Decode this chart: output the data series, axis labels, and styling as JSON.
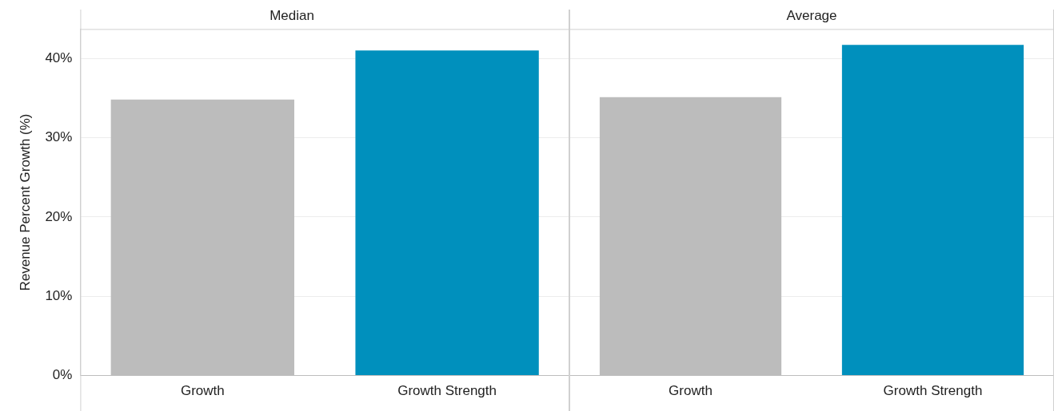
{
  "chart_data": [
    {
      "type": "bar",
      "title": "Median",
      "ylabel": "Revenue Percent Growth (%)",
      "categories": [
        "Growth",
        "Growth Strength"
      ],
      "values": [
        34.8,
        41.0
      ],
      "colors": [
        "#bcbcbc",
        "#0090bd"
      ],
      "ylim": [
        0,
        43.7
      ],
      "yticks": [
        {
          "value": 0,
          "label": "0%"
        },
        {
          "value": 10,
          "label": "10%"
        },
        {
          "value": 20,
          "label": "20%"
        },
        {
          "value": 30,
          "label": "30%"
        },
        {
          "value": 40,
          "label": "40%"
        }
      ],
      "grid": "y",
      "legend": false
    },
    {
      "type": "bar",
      "title": "Average",
      "categories": [
        "Growth",
        "Growth Strength"
      ],
      "values": [
        35.1,
        41.7
      ],
      "colors": [
        "#bcbcbc",
        "#0090bd"
      ],
      "ylim": [
        0,
        43.7
      ],
      "yticks": [
        {
          "value": 0,
          "label": null
        },
        {
          "value": 10,
          "label": null
        },
        {
          "value": 20,
          "label": null
        },
        {
          "value": 30,
          "label": null
        },
        {
          "value": 40,
          "label": null
        }
      ],
      "grid": "y",
      "legend": false,
      "tick_labels": "x"
    }
  ]
}
